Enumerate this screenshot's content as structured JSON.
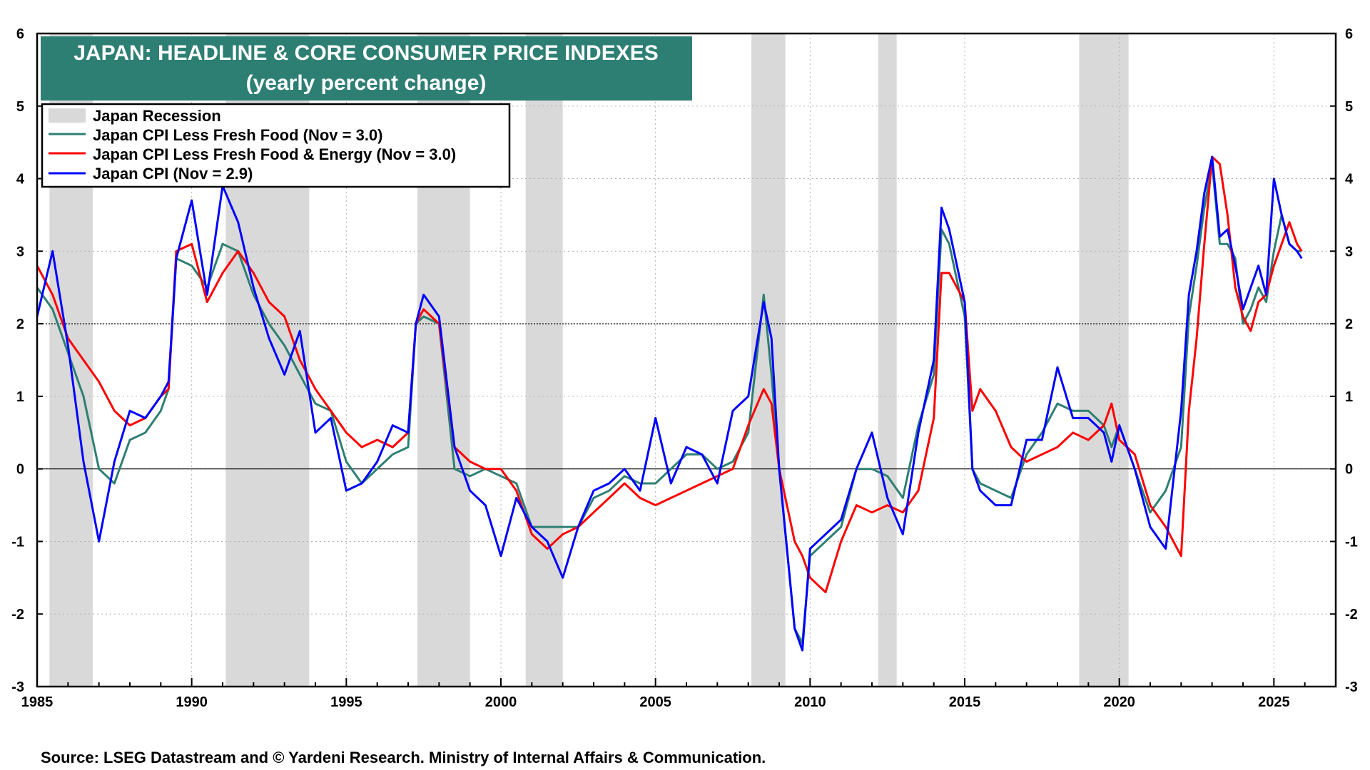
{
  "source_text": "Source: LSEG Datastream and © Yardeni Research. Ministry of Internal Affairs & Communication.",
  "colors": {
    "title_bg": "#2e7f73",
    "recession": "#d9d9d9",
    "less_fresh_food": "#2e7f73",
    "less_fresh_food_energy": "#ff0000",
    "headline": "#0000ff"
  },
  "chart_data": {
    "type": "line",
    "title": "JAPAN: HEADLINE & CORE CONSUMER PRICE INDEXES",
    "subtitle": "(yearly percent change)",
    "xlim": [
      1985,
      2027
    ],
    "ylim": [
      -3,
      6
    ],
    "x_ticks": [
      1985,
      1990,
      1995,
      2000,
      2005,
      2010,
      2015,
      2020,
      2025
    ],
    "y_ticks": [
      6,
      5,
      4,
      3,
      2,
      1,
      0,
      -1,
      -2,
      -3
    ],
    "reference_lines": [
      0,
      2
    ],
    "grid": true,
    "legend_position": "top-left",
    "recessions": [
      {
        "label": "Japan Recession",
        "periods": [
          [
            1985.4,
            1986.8
          ],
          [
            1991.1,
            1993.8
          ],
          [
            1997.3,
            1999.0
          ],
          [
            2000.8,
            2002.0
          ],
          [
            2008.1,
            2009.2
          ],
          [
            2012.2,
            2012.8
          ],
          [
            2018.7,
            2020.3
          ]
        ]
      }
    ],
    "series": [
      {
        "name": "Japan CPI Less Fresh Food (Nov = 3.0)",
        "key": "less_fresh_food",
        "x": [
          1985.0,
          1985.5,
          1986.0,
          1986.5,
          1987.0,
          1987.5,
          1988.0,
          1988.5,
          1989.0,
          1989.25,
          1989.5,
          1990.0,
          1990.5,
          1991.0,
          1991.5,
          1992.0,
          1992.5,
          1993.0,
          1993.5,
          1994.0,
          1994.5,
          1995.0,
          1995.5,
          1996.0,
          1996.5,
          1997.0,
          1997.25,
          1997.5,
          1998.0,
          1998.5,
          1999.0,
          1999.5,
          2000.0,
          2000.5,
          2001.0,
          2001.5,
          2002.0,
          2002.5,
          2003.0,
          2003.5,
          2004.0,
          2004.5,
          2005.0,
          2005.5,
          2006.0,
          2006.5,
          2007.0,
          2007.5,
          2008.0,
          2008.5,
          2008.75,
          2009.0,
          2009.5,
          2009.75,
          2010.0,
          2010.5,
          2011.0,
          2011.5,
          2012.0,
          2012.5,
          2013.0,
          2013.5,
          2014.0,
          2014.25,
          2014.5,
          2015.0,
          2015.25,
          2015.5,
          2016.0,
          2016.5,
          2017.0,
          2017.5,
          2018.0,
          2018.5,
          2019.0,
          2019.5,
          2019.75,
          2020.0,
          2020.5,
          2021.0,
          2021.5,
          2022.0,
          2022.25,
          2022.5,
          2022.75,
          2023.0,
          2023.25,
          2023.5,
          2023.75,
          2024.0,
          2024.25,
          2024.5,
          2024.75,
          2025.0,
          2025.25,
          2025.5,
          2025.75,
          2025.9
        ],
        "values": [
          2.5,
          2.2,
          1.6,
          1.0,
          0.0,
          -0.2,
          0.4,
          0.5,
          0.8,
          1.1,
          2.9,
          2.8,
          2.5,
          3.1,
          3.0,
          2.4,
          2.0,
          1.7,
          1.3,
          0.9,
          0.8,
          0.1,
          -0.2,
          0.0,
          0.2,
          0.3,
          2.0,
          2.1,
          2.0,
          0.0,
          -0.1,
          0.0,
          -0.1,
          -0.2,
          -0.8,
          -0.8,
          -0.8,
          -0.8,
          -0.4,
          -0.3,
          -0.1,
          -0.2,
          -0.2,
          0.0,
          0.2,
          0.2,
          0.0,
          0.1,
          0.5,
          2.4,
          1.3,
          0.0,
          -2.2,
          -2.4,
          -1.2,
          -1.0,
          -0.8,
          0.0,
          0.0,
          -0.1,
          -0.4,
          0.6,
          1.3,
          3.3,
          3.1,
          2.1,
          0.0,
          -0.2,
          -0.3,
          -0.4,
          0.2,
          0.5,
          0.9,
          0.8,
          0.8,
          0.6,
          0.3,
          0.6,
          0.0,
          -0.6,
          -0.3,
          0.3,
          2.1,
          2.8,
          3.6,
          4.2,
          3.1,
          3.1,
          2.9,
          2.0,
          2.2,
          2.5,
          2.3,
          3.0,
          3.5,
          3.1,
          3.0,
          3.0
        ]
      },
      {
        "name": "Japan CPI Less Fresh Food & Energy (Nov = 3.0)",
        "key": "less_fresh_food_energy",
        "x": [
          1985.0,
          1985.5,
          1986.0,
          1986.5,
          1987.0,
          1987.5,
          1988.0,
          1988.5,
          1989.0,
          1989.25,
          1989.5,
          1990.0,
          1990.5,
          1991.0,
          1991.5,
          1992.0,
          1992.5,
          1993.0,
          1993.5,
          1994.0,
          1994.5,
          1995.0,
          1995.5,
          1996.0,
          1996.5,
          1997.0,
          1997.25,
          1997.5,
          1998.0,
          1998.5,
          1999.0,
          1999.5,
          2000.0,
          2000.5,
          2001.0,
          2001.5,
          2002.0,
          2002.5,
          2003.0,
          2003.5,
          2004.0,
          2004.5,
          2005.0,
          2005.5,
          2006.0,
          2006.5,
          2007.0,
          2007.5,
          2008.0,
          2008.5,
          2008.75,
          2009.0,
          2009.5,
          2009.75,
          2010.0,
          2010.5,
          2011.0,
          2011.5,
          2012.0,
          2012.5,
          2013.0,
          2013.5,
          2014.0,
          2014.25,
          2014.5,
          2015.0,
          2015.25,
          2015.5,
          2016.0,
          2016.5,
          2017.0,
          2017.5,
          2018.0,
          2018.5,
          2019.0,
          2019.5,
          2019.75,
          2020.0,
          2020.5,
          2021.0,
          2021.5,
          2022.0,
          2022.25,
          2022.5,
          2022.75,
          2023.0,
          2023.25,
          2023.5,
          2023.75,
          2024.0,
          2024.25,
          2024.5,
          2024.75,
          2025.0,
          2025.25,
          2025.5,
          2025.75,
          2025.9
        ],
        "values": [
          2.8,
          2.4,
          1.8,
          1.5,
          1.2,
          0.8,
          0.6,
          0.7,
          1.0,
          1.1,
          3.0,
          3.1,
          2.3,
          2.7,
          3.0,
          2.7,
          2.3,
          2.1,
          1.5,
          1.1,
          0.8,
          0.5,
          0.3,
          0.4,
          0.3,
          0.5,
          2.0,
          2.2,
          2.0,
          0.3,
          0.1,
          0.0,
          0.0,
          -0.3,
          -0.9,
          -1.1,
          -0.9,
          -0.8,
          -0.6,
          -0.4,
          -0.2,
          -0.4,
          -0.5,
          -0.4,
          -0.3,
          -0.2,
          -0.1,
          0.0,
          0.6,
          1.1,
          0.9,
          0.0,
          -1.0,
          -1.2,
          -1.5,
          -1.7,
          -1.0,
          -0.5,
          -0.6,
          -0.5,
          -0.6,
          -0.3,
          0.7,
          2.7,
          2.7,
          2.3,
          0.8,
          1.1,
          0.8,
          0.3,
          0.1,
          0.2,
          0.3,
          0.5,
          0.4,
          0.6,
          0.9,
          0.4,
          0.2,
          -0.5,
          -0.8,
          -1.2,
          0.8,
          1.8,
          3.1,
          4.3,
          4.2,
          3.5,
          2.5,
          2.1,
          1.9,
          2.3,
          2.4,
          2.8,
          3.1,
          3.4,
          3.1,
          3.0
        ]
      },
      {
        "name": "Japan CPI  (Nov = 2.9)",
        "key": "headline",
        "x": [
          1985.0,
          1985.5,
          1986.0,
          1986.5,
          1987.0,
          1987.5,
          1988.0,
          1988.5,
          1989.0,
          1989.25,
          1989.5,
          1990.0,
          1990.5,
          1991.0,
          1991.5,
          1992.0,
          1992.5,
          1993.0,
          1993.5,
          1994.0,
          1994.5,
          1995.0,
          1995.5,
          1996.0,
          1996.5,
          1997.0,
          1997.25,
          1997.5,
          1998.0,
          1998.5,
          1999.0,
          1999.5,
          2000.0,
          2000.5,
          2001.0,
          2001.5,
          2002.0,
          2002.5,
          2003.0,
          2003.5,
          2004.0,
          2004.5,
          2005.0,
          2005.5,
          2006.0,
          2006.5,
          2007.0,
          2007.5,
          2008.0,
          2008.5,
          2008.75,
          2009.0,
          2009.5,
          2009.75,
          2010.0,
          2010.5,
          2011.0,
          2011.5,
          2012.0,
          2012.5,
          2013.0,
          2013.5,
          2014.0,
          2014.25,
          2014.5,
          2015.0,
          2015.25,
          2015.5,
          2016.0,
          2016.5,
          2017.0,
          2017.5,
          2018.0,
          2018.5,
          2019.0,
          2019.5,
          2019.75,
          2020.0,
          2020.5,
          2021.0,
          2021.5,
          2022.0,
          2022.25,
          2022.5,
          2022.75,
          2023.0,
          2023.25,
          2023.5,
          2023.75,
          2024.0,
          2024.25,
          2024.5,
          2024.75,
          2025.0,
          2025.25,
          2025.5,
          2025.75,
          2025.9
        ],
        "values": [
          2.1,
          3.0,
          1.7,
          0.1,
          -1.0,
          0.1,
          0.8,
          0.7,
          1.0,
          1.2,
          2.9,
          3.7,
          2.4,
          3.9,
          3.4,
          2.5,
          1.8,
          1.3,
          1.9,
          0.5,
          0.7,
          -0.3,
          -0.2,
          0.1,
          0.6,
          0.5,
          2.0,
          2.4,
          2.1,
          0.3,
          -0.3,
          -0.5,
          -1.2,
          -0.4,
          -0.8,
          -1.0,
          -1.5,
          -0.8,
          -0.3,
          -0.2,
          0.0,
          -0.3,
          0.7,
          -0.2,
          0.3,
          0.2,
          -0.2,
          0.8,
          1.0,
          2.3,
          1.8,
          0.0,
          -2.2,
          -2.5,
          -1.1,
          -0.9,
          -0.7,
          0.0,
          0.5,
          -0.4,
          -0.9,
          0.5,
          1.5,
          3.6,
          3.3,
          2.3,
          0.0,
          -0.3,
          -0.5,
          -0.5,
          0.4,
          0.4,
          1.4,
          0.7,
          0.7,
          0.5,
          0.1,
          0.6,
          0.0,
          -0.8,
          -1.1,
          0.8,
          2.4,
          3.0,
          3.8,
          4.3,
          3.2,
          3.3,
          2.8,
          2.2,
          2.5,
          2.8,
          2.4,
          4.0,
          3.5,
          3.1,
          3.0,
          2.9
        ]
      }
    ]
  }
}
